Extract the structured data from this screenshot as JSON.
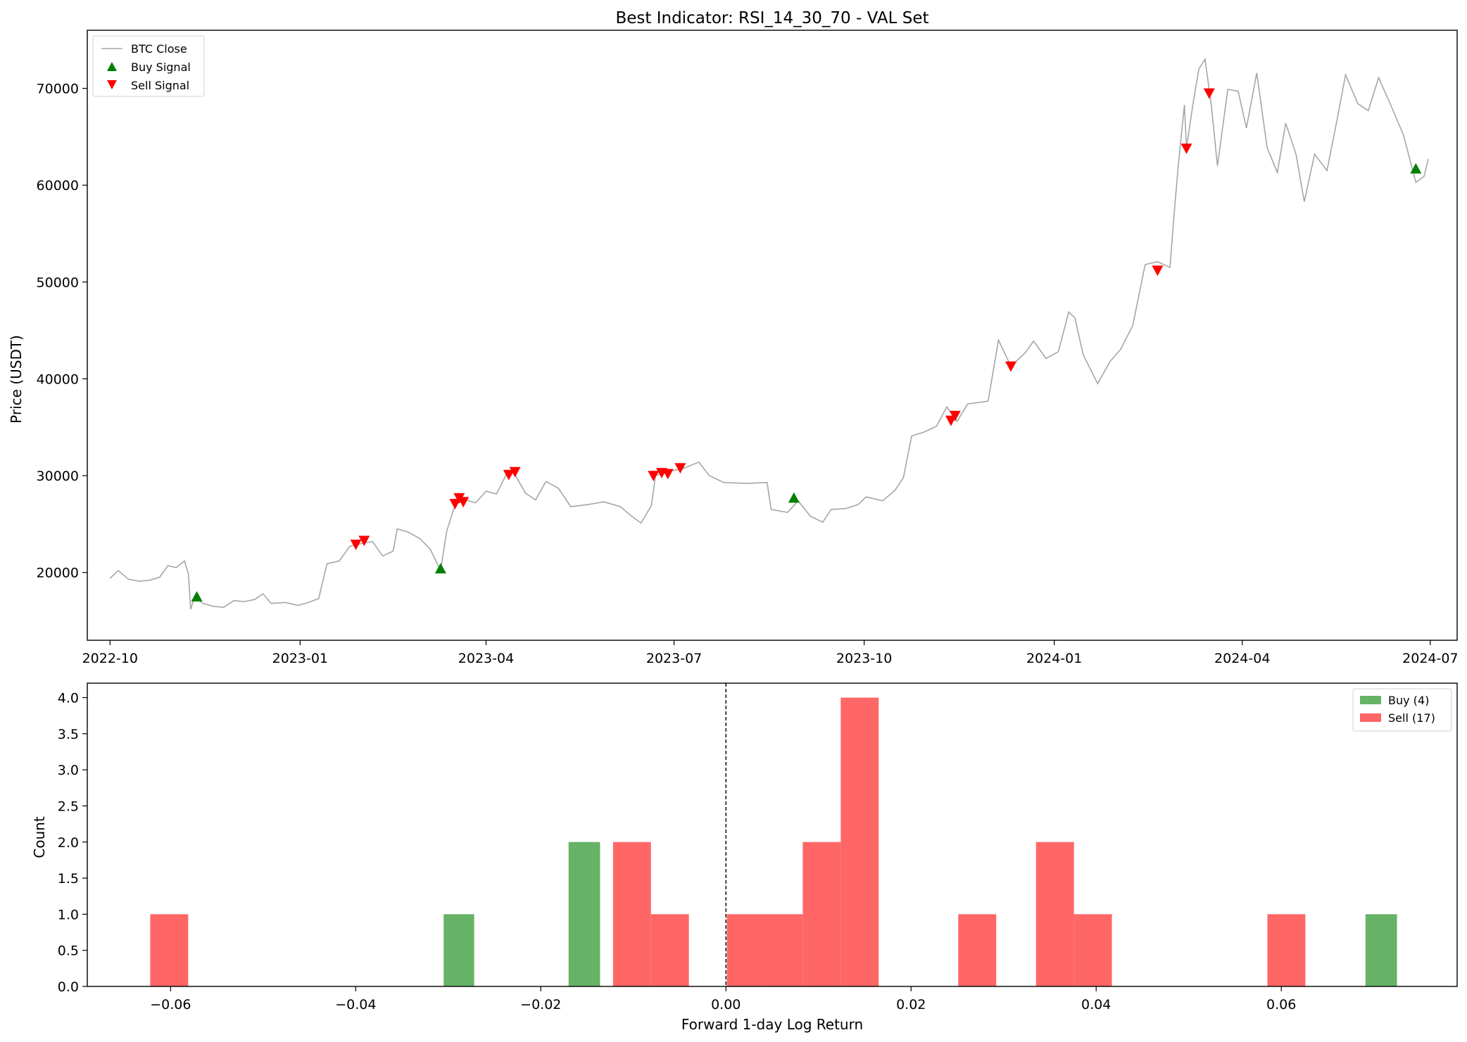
{
  "title": "Best Indicator: RSI_14_30_70 - VAL Set",
  "chart_data": [
    {
      "type": "line",
      "ylabel": "Price (USDT)",
      "xlabel": "",
      "xlim": [
        "2022-09-20",
        "2024-07-14"
      ],
      "ylim": [
        13000,
        76000
      ],
      "x_ticks": [
        "2022-10",
        "2023-01",
        "2023-04",
        "2023-07",
        "2023-10",
        "2024-01",
        "2024-04",
        "2024-07"
      ],
      "y_ticks": [
        20000,
        30000,
        40000,
        50000,
        60000,
        70000
      ],
      "grid": false,
      "legend_position": "top-left",
      "colors": {
        "close": "#a6a6a6",
        "buy": "#008000",
        "sell": "#ff0000"
      },
      "series": [
        {
          "name": "BTC Close",
          "points": [
            [
              "2022-10-01",
              19400
            ],
            [
              "2022-10-05",
              20200
            ],
            [
              "2022-10-10",
              19300
            ],
            [
              "2022-10-15",
              19100
            ],
            [
              "2022-10-20",
              19200
            ],
            [
              "2022-10-25",
              19500
            ],
            [
              "2022-10-29",
              20700
            ],
            [
              "2022-11-02",
              20500
            ],
            [
              "2022-11-06",
              21200
            ],
            [
              "2022-11-08",
              19800
            ],
            [
              "2022-11-09",
              16200
            ],
            [
              "2022-11-11",
              17500
            ],
            [
              "2022-11-15",
              16800
            ],
            [
              "2022-11-20",
              16500
            ],
            [
              "2022-11-25",
              16400
            ],
            [
              "2022-11-30",
              17100
            ],
            [
              "2022-12-05",
              17000
            ],
            [
              "2022-12-10",
              17200
            ],
            [
              "2022-12-14",
              17800
            ],
            [
              "2022-12-18",
              16800
            ],
            [
              "2022-12-25",
              16900
            ],
            [
              "2022-12-31",
              16600
            ],
            [
              "2023-01-05",
              16900
            ],
            [
              "2023-01-10",
              17300
            ],
            [
              "2023-01-14",
              20900
            ],
            [
              "2023-01-20",
              21200
            ],
            [
              "2023-01-25",
              22700
            ],
            [
              "2023-01-31",
              23000
            ],
            [
              "2023-02-05",
              23200
            ],
            [
              "2023-02-10",
              21700
            ],
            [
              "2023-02-15",
              22200
            ],
            [
              "2023-02-17",
              24500
            ],
            [
              "2023-02-22",
              24200
            ],
            [
              "2023-02-28",
              23500
            ],
            [
              "2023-03-05",
              22400
            ],
            [
              "2023-03-10",
              20200
            ],
            [
              "2023-03-13",
              24300
            ],
            [
              "2023-03-17",
              27000
            ],
            [
              "2023-03-22",
              27500
            ],
            [
              "2023-03-27",
              27200
            ],
            [
              "2023-04-01",
              28400
            ],
            [
              "2023-04-06",
              28100
            ],
            [
              "2023-04-11",
              30200
            ],
            [
              "2023-04-14",
              30500
            ],
            [
              "2023-04-20",
              28200
            ],
            [
              "2023-04-25",
              27500
            ],
            [
              "2023-04-30",
              29400
            ],
            [
              "2023-05-06",
              28700
            ],
            [
              "2023-05-12",
              26800
            ],
            [
              "2023-05-20",
              27000
            ],
            [
              "2023-05-28",
              27300
            ],
            [
              "2023-06-05",
              26800
            ],
            [
              "2023-06-10",
              25900
            ],
            [
              "2023-06-15",
              25100
            ],
            [
              "2023-06-20",
              26900
            ],
            [
              "2023-06-22",
              30000
            ],
            [
              "2023-06-27",
              30400
            ],
            [
              "2023-07-05",
              30700
            ],
            [
              "2023-07-13",
              31400
            ],
            [
              "2023-07-18",
              30000
            ],
            [
              "2023-07-25",
              29300
            ],
            [
              "2023-08-05",
              29200
            ],
            [
              "2023-08-15",
              29300
            ],
            [
              "2023-08-17",
              26500
            ],
            [
              "2023-08-25",
              26200
            ],
            [
              "2023-08-30",
              27400
            ],
            [
              "2023-09-05",
              25800
            ],
            [
              "2023-09-11",
              25200
            ],
            [
              "2023-09-15",
              26500
            ],
            [
              "2023-09-22",
              26600
            ],
            [
              "2023-09-28",
              27000
            ],
            [
              "2023-10-02",
              27800
            ],
            [
              "2023-10-10",
              27400
            ],
            [
              "2023-10-16",
              28500
            ],
            [
              "2023-10-20",
              29800
            ],
            [
              "2023-10-24",
              34100
            ],
            [
              "2023-10-30",
              34500
            ],
            [
              "2023-11-05",
              35100
            ],
            [
              "2023-11-10",
              37100
            ],
            [
              "2023-11-15",
              35600
            ],
            [
              "2023-11-20",
              37400
            ],
            [
              "2023-11-30",
              37700
            ],
            [
              "2023-12-05",
              44000
            ],
            [
              "2023-12-11",
              41300
            ],
            [
              "2023-12-18",
              42700
            ],
            [
              "2023-12-22",
              43900
            ],
            [
              "2023-12-28",
              42100
            ],
            [
              "2024-01-03",
              42800
            ],
            [
              "2024-01-08",
              46900
            ],
            [
              "2024-01-11",
              46300
            ],
            [
              "2024-01-15",
              42500
            ],
            [
              "2024-01-22",
              39500
            ],
            [
              "2024-01-28",
              41800
            ],
            [
              "2024-02-02",
              43000
            ],
            [
              "2024-02-08",
              45500
            ],
            [
              "2024-02-14",
              51800
            ],
            [
              "2024-02-20",
              52100
            ],
            [
              "2024-02-26",
              51500
            ],
            [
              "2024-02-28",
              57000
            ],
            [
              "2024-03-01",
              62000
            ],
            [
              "2024-03-04",
              68300
            ],
            [
              "2024-03-05",
              63800
            ],
            [
              "2024-03-08",
              68200
            ],
            [
              "2024-03-11",
              72000
            ],
            [
              "2024-03-14",
              73000
            ],
            [
              "2024-03-17",
              68300
            ],
            [
              "2024-03-20",
              62000
            ],
            [
              "2024-03-25",
              69900
            ],
            [
              "2024-03-30",
              69700
            ],
            [
              "2024-04-03",
              65900
            ],
            [
              "2024-04-08",
              71600
            ],
            [
              "2024-04-13",
              63900
            ],
            [
              "2024-04-18",
              61300
            ],
            [
              "2024-04-22",
              66400
            ],
            [
              "2024-04-27",
              63200
            ],
            [
              "2024-05-01",
              58300
            ],
            [
              "2024-05-06",
              63200
            ],
            [
              "2024-05-12",
              61500
            ],
            [
              "2024-05-17",
              66900
            ],
            [
              "2024-05-21",
              71400
            ],
            [
              "2024-05-27",
              68400
            ],
            [
              "2024-06-01",
              67700
            ],
            [
              "2024-06-06",
              71100
            ],
            [
              "2024-06-12",
              68200
            ],
            [
              "2024-06-18",
              65200
            ],
            [
              "2024-06-24",
              60300
            ],
            [
              "2024-06-28",
              60900
            ],
            [
              "2024-06-30",
              62700
            ]
          ]
        },
        {
          "name": "Buy Signal",
          "points": [
            [
              "2022-11-12",
              17500
            ],
            [
              "2023-03-10",
              20400
            ],
            [
              "2023-08-28",
              27700
            ],
            [
              "2024-06-24",
              61700
            ]
          ]
        },
        {
          "name": "Sell Signal",
          "points": [
            [
              "2023-01-28",
              22900
            ],
            [
              "2023-02-01",
              23300
            ],
            [
              "2023-03-17",
              27100
            ],
            [
              "2023-03-19",
              27700
            ],
            [
              "2023-03-21",
              27300
            ],
            [
              "2023-04-12",
              30100
            ],
            [
              "2023-04-15",
              30400
            ],
            [
              "2023-06-21",
              30000
            ],
            [
              "2023-06-25",
              30300
            ],
            [
              "2023-06-28",
              30200
            ],
            [
              "2023-07-04",
              30800
            ],
            [
              "2023-11-12",
              35700
            ],
            [
              "2023-11-14",
              36200
            ],
            [
              "2023-12-11",
              41300
            ],
            [
              "2024-02-20",
              51200
            ],
            [
              "2024-03-05",
              63800
            ],
            [
              "2024-03-16",
              69500
            ]
          ]
        }
      ]
    },
    {
      "type": "bar",
      "xlabel": "Forward 1-day Log Return",
      "ylabel": "Count",
      "xlim": [
        -0.069,
        0.079
      ],
      "ylim": [
        0,
        4.2
      ],
      "x_ticks": [
        "−0.06",
        "−0.04",
        "−0.02",
        "0.00",
        "0.02",
        "0.04",
        "0.06"
      ],
      "x_tick_values": [
        -0.06,
        -0.04,
        -0.02,
        0.0,
        0.02,
        0.04,
        0.06
      ],
      "y_ticks": [
        "0.0",
        "0.5",
        "1.0",
        "1.5",
        "2.0",
        "2.5",
        "3.0",
        "3.5",
        "4.0"
      ],
      "y_tick_values": [
        0,
        0.5,
        1,
        1.5,
        2,
        2.5,
        3,
        3.5,
        4
      ],
      "grid": false,
      "legend_position": "top-right",
      "reference_line_x": 0,
      "colors": {
        "buy": "#66b266",
        "sell": "#ff6666"
      },
      "series": [
        {
          "name": "Buy (4)",
          "bins": [
            {
              "x0": -0.0305,
              "x1": -0.0272,
              "count": 1
            },
            {
              "x0": -0.017,
              "x1": -0.0136,
              "count": 2
            },
            {
              "x0": 0.0691,
              "x1": 0.0725,
              "count": 1
            }
          ]
        },
        {
          "name": "Sell (17)",
          "bins": [
            {
              "x0": -0.0622,
              "x1": -0.0581,
              "count": 1
            },
            {
              "x0": -0.0122,
              "x1": -0.0081,
              "count": 2
            },
            {
              "x0": -0.0081,
              "x1": -0.004,
              "count": 1
            },
            {
              "x0": 0.0001,
              "x1": 0.0042,
              "count": 1
            },
            {
              "x0": 0.0042,
              "x1": 0.0083,
              "count": 1
            },
            {
              "x0": 0.0083,
              "x1": 0.0124,
              "count": 2
            },
            {
              "x0": 0.0124,
              "x1": 0.0165,
              "count": 4
            },
            {
              "x0": 0.0251,
              "x1": 0.0292,
              "count": 1
            },
            {
              "x0": 0.0335,
              "x1": 0.0376,
              "count": 2
            },
            {
              "x0": 0.0376,
              "x1": 0.0417,
              "count": 1
            },
            {
              "x0": 0.0585,
              "x1": 0.0626,
              "count": 1
            }
          ]
        }
      ]
    }
  ]
}
